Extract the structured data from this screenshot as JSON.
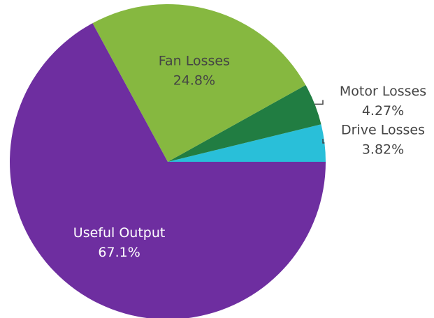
{
  "chart_data": {
    "type": "pie",
    "categories": [
      "Drive Losses",
      "Motor Losses",
      "Fan Losses",
      "Useful Output"
    ],
    "values": [
      3.82,
      4.27,
      24.8,
      67.1
    ],
    "value_labels": [
      "3.82%",
      "4.27%",
      "24.8%",
      "67.1%"
    ],
    "colors": [
      "#29bfd9",
      "#217d42",
      "#86b840",
      "#6e2ea0"
    ]
  }
}
